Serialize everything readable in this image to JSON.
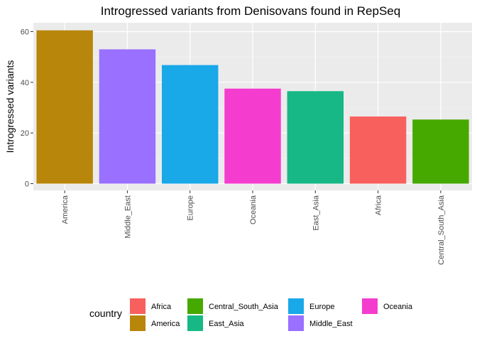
{
  "chart_data": {
    "type": "bar",
    "title": "Introgressed variants from Denisovans found in RepSeq",
    "xlabel": "",
    "ylabel": "Introgressed variants",
    "categories": [
      "America",
      "Middle_East",
      "Europe",
      "Oceania",
      "East_Asia",
      "Africa",
      "Central_South_Asia"
    ],
    "values": [
      60.5,
      53,
      46.8,
      37.5,
      36.5,
      26.5,
      25.3
    ],
    "colors": [
      "#B8860B",
      "#9970FF",
      "#19A8E8",
      "#F43CCF",
      "#17B885",
      "#F8605E",
      "#46A900"
    ],
    "ylim": [
      0,
      62
    ],
    "yticks": [
      0,
      20,
      40,
      60
    ],
    "grid": true,
    "legend": {
      "title": "country",
      "placement": "bottom",
      "entries": [
        {
          "label": "Africa",
          "color": "#F8605E"
        },
        {
          "label": "America",
          "color": "#B8860B"
        },
        {
          "label": "Central_South_Asia",
          "color": "#46A900"
        },
        {
          "label": "East_Asia",
          "color": "#17B885"
        },
        {
          "label": "Europe",
          "color": "#19A8E8"
        },
        {
          "label": "Middle_East",
          "color": "#9970FF"
        },
        {
          "label": "Oceania",
          "color": "#F43CCF"
        }
      ]
    }
  }
}
